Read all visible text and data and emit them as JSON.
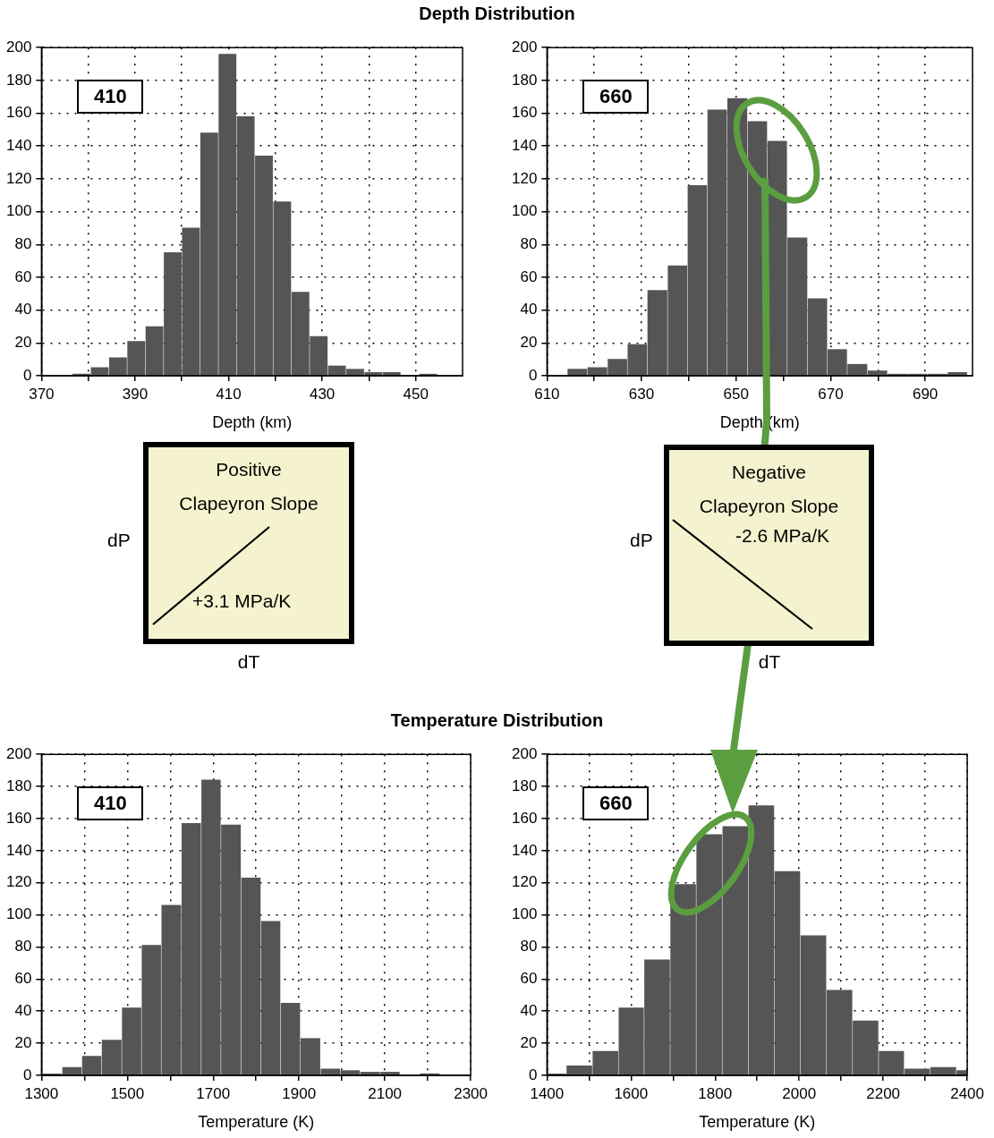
{
  "chart_data": [
    {
      "type": "histogram",
      "title": "Depth Distribution",
      "xlabel": "Depth (km)",
      "annotations": [
        "410"
      ],
      "color": "#555555",
      "bins": [
        376.6,
        380.5,
        384.4,
        388.3,
        392.2,
        396.1,
        400.0,
        403.9,
        407.8,
        411.7,
        415.6,
        419.5,
        423.4,
        427.3,
        431.2,
        435.1,
        439.0,
        442.9,
        446.8,
        450.7,
        454.6
      ],
      "values": [
        1,
        5,
        11,
        21,
        30,
        75,
        90,
        148,
        196,
        158,
        134,
        106,
        51,
        24,
        6,
        4,
        2,
        2,
        0,
        1
      ],
      "xlim": [
        370,
        460
      ],
      "xticks": [
        370,
        {
          "value": 380,
          "label": null
        },
        390,
        {
          "value": 400,
          "label": null
        },
        410,
        {
          "value": 420,
          "label": null
        },
        430,
        {
          "value": 440,
          "label": null
        },
        450
      ],
      "ylim": [
        0,
        200
      ],
      "yticks": [
        0,
        20,
        40,
        60,
        80,
        100,
        120,
        140,
        160,
        180,
        200
      ],
      "grid": true
    },
    {
      "type": "histogram",
      "xlabel": "Depth (km)",
      "annotations": [
        "660"
      ],
      "color": "#555555",
      "bins": [
        614.3,
        618.5,
        622.8,
        627.0,
        631.2,
        635.5,
        639.7,
        643.9,
        648.1,
        652.4,
        656.6,
        660.8,
        665.1,
        669.3,
        673.5,
        677.8,
        682.0,
        686.2,
        690.4,
        694.7,
        698.9
      ],
      "values": [
        4,
        5,
        10,
        19,
        52,
        67,
        116,
        162,
        169,
        155,
        143,
        84,
        47,
        16,
        7,
        3,
        1,
        1,
        1,
        2
      ],
      "xlim": [
        610,
        700
      ],
      "xticks": [
        610,
        {
          "value": 620,
          "label": null
        },
        630,
        {
          "value": 640,
          "label": null
        },
        650,
        {
          "value": 660,
          "label": null
        },
        670,
        {
          "value": 680,
          "label": null
        },
        690
      ],
      "ylim": [
        0,
        200
      ],
      "yticks": [
        0,
        20,
        40,
        60,
        80,
        100,
        120,
        140,
        160,
        180,
        200
      ],
      "grid": true
    },
    {
      "type": "other",
      "title": "Positive Clapeyron Slope",
      "annotations": [
        "dP",
        "dT",
        "+3.1 MPa/K"
      ]
    },
    {
      "type": "other",
      "title": "Negative Clapeyron Slope",
      "annotations": [
        "dP",
        "dT",
        "-2.6 MPa/K"
      ]
    },
    {
      "type": "histogram",
      "title": "Temperature Distribution",
      "xlabel": "Temperature (K)",
      "annotations": [
        "410"
      ],
      "color": "#555555",
      "bins": [
        1302,
        1348,
        1394,
        1440,
        1487,
        1533,
        1579,
        1626,
        1672,
        1718,
        1765,
        1811,
        1857,
        1903,
        1950,
        1996,
        2042,
        2089,
        2135,
        2181,
        2228
      ],
      "values": [
        1,
        5,
        12,
        22,
        42,
        81,
        106,
        157,
        184,
        156,
        123,
        96,
        45,
        23,
        4,
        3,
        2,
        2,
        0,
        1
      ],
      "xlim": [
        1300,
        2300
      ],
      "xticks": [
        1300,
        {
          "value": 1400,
          "label": null
        },
        1500,
        {
          "value": 1600,
          "label": null
        },
        1700,
        {
          "value": 1800,
          "label": null
        },
        1900,
        {
          "value": 2000,
          "label": null
        },
        2100,
        {
          "value": 2200,
          "label": null
        },
        2300
      ],
      "ylim": [
        0,
        200
      ],
      "yticks": [
        0,
        20,
        40,
        60,
        80,
        100,
        120,
        140,
        160,
        180,
        200
      ],
      "grid": true
    },
    {
      "type": "histogram",
      "xlabel": "Temperature (K)",
      "annotations": [
        "660"
      ],
      "color": "#555555",
      "bins": [
        1400,
        1446,
        1508,
        1570,
        1631,
        1693,
        1755,
        1817,
        1879,
        1941,
        2003,
        2065,
        2127,
        2189,
        2250,
        2312,
        2374,
        2400
      ],
      "values": [
        1,
        6,
        15,
        42,
        72,
        119,
        150,
        155,
        168,
        127,
        87,
        53,
        34,
        15,
        4,
        5,
        3
      ],
      "xlim": [
        1400,
        2400
      ],
      "xticks": [
        1400,
        {
          "value": 1500,
          "label": null
        },
        1600,
        {
          "value": 1700,
          "label": null
        },
        1800,
        {
          "value": 1900,
          "label": null
        },
        2000,
        {
          "value": 2100,
          "label": null
        },
        2200,
        {
          "value": 2300,
          "label": null
        },
        2400
      ],
      "ylim": [
        0,
        200
      ],
      "yticks": [
        0,
        20,
        40,
        60,
        80,
        100,
        120,
        140,
        160,
        180,
        200
      ],
      "grid": true
    }
  ]
}
